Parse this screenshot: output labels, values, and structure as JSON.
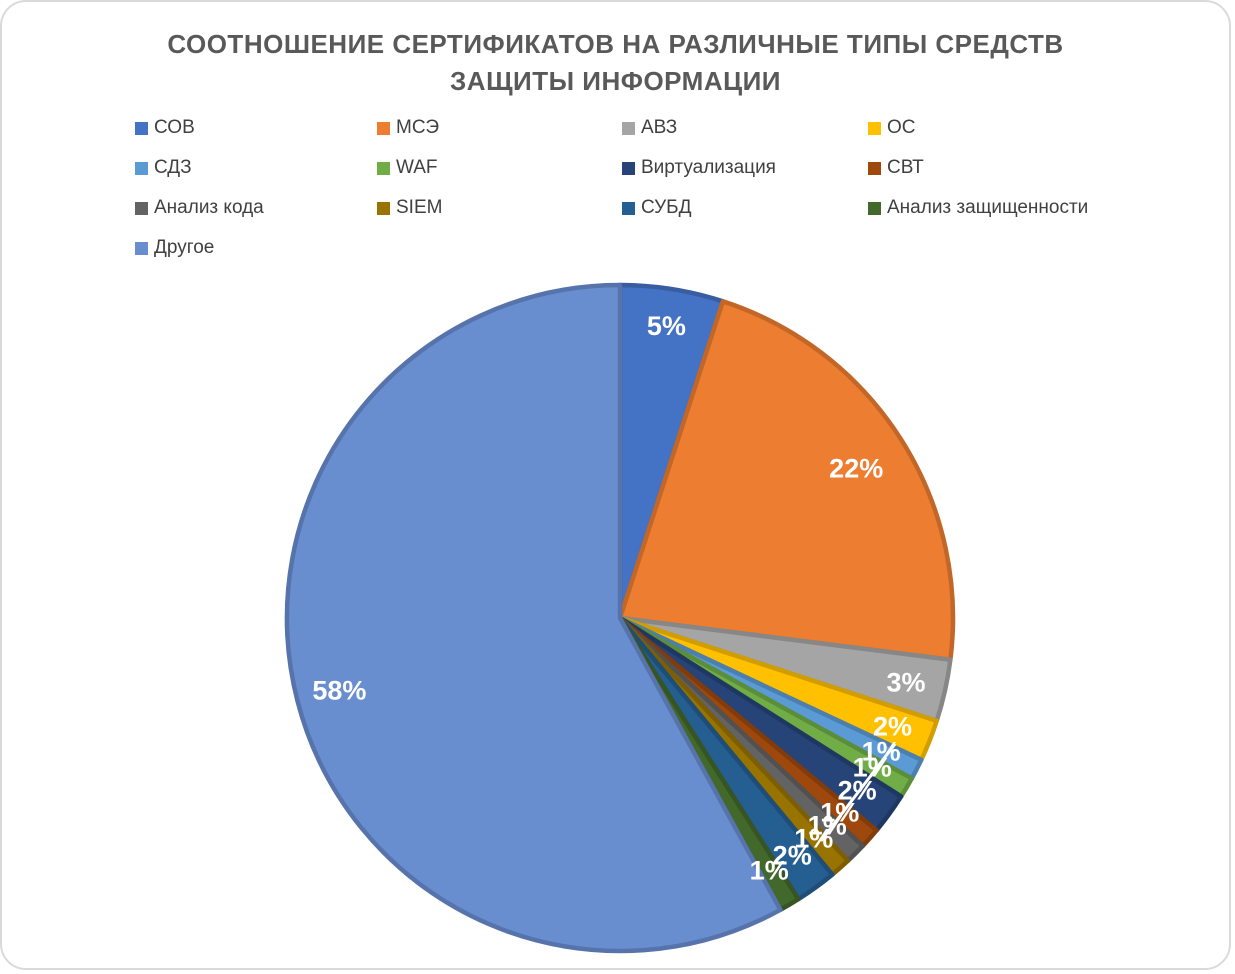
{
  "page": {
    "background": "#ffffff",
    "frame_border_color": "#dadada"
  },
  "chart_data": {
    "type": "pie",
    "title": "СООТНОШЕНИЕ СЕРТИФИКАТОВ НА РАЗЛИЧНЫЕ ТИПЫ СРЕДСТВ ЗАЩИТЫ ИНФОРМАЦИИ",
    "title_lines": [
      "СООТНОШЕНИЕ СЕРТИФИКАТОВ НА РАЗЛИЧНЫЕ ТИПЫ СРЕДСТВ",
      "ЗАЩИТЫ ИНФОРМАЦИИ"
    ],
    "categories": [
      "СОВ",
      "МСЭ",
      "АВЗ",
      "ОС",
      "СДЗ",
      "WAF",
      "Виртуализация",
      "СВТ",
      "Анализ кода",
      "SIEM",
      "СУБД",
      "Анализ защищенности",
      "Другое"
    ],
    "values": [
      5,
      22,
      3,
      2,
      1,
      1,
      2,
      1,
      1,
      1,
      2,
      1,
      58
    ],
    "data_labels": [
      "5%",
      "22%",
      "3%",
      "2%",
      "1%",
      "1%",
      "2%",
      "1%",
      "1%",
      "1%",
      "2%",
      "1%",
      "58%"
    ],
    "colors": [
      "#4472C4",
      "#ED7D31",
      "#A5A5A5",
      "#FFC000",
      "#5B9BD5",
      "#70AD47",
      "#264478",
      "#9E480E",
      "#636363",
      "#997300",
      "#255E91",
      "#43682B",
      "#698ED0"
    ],
    "title_color": "#595959",
    "legend_text_color": "#404040",
    "label_color": "#ffffff",
    "legend_position": "top",
    "legend_columns": 4,
    "start_angle_deg": 0,
    "direction": "clockwise",
    "label_placement": "inside",
    "label_radius_fractions": [
      0.89,
      0.84,
      0.88,
      0.88,
      0.88,
      0.88,
      0.88,
      0.88,
      0.88,
      0.88,
      0.88,
      0.88,
      0.87
    ]
  }
}
